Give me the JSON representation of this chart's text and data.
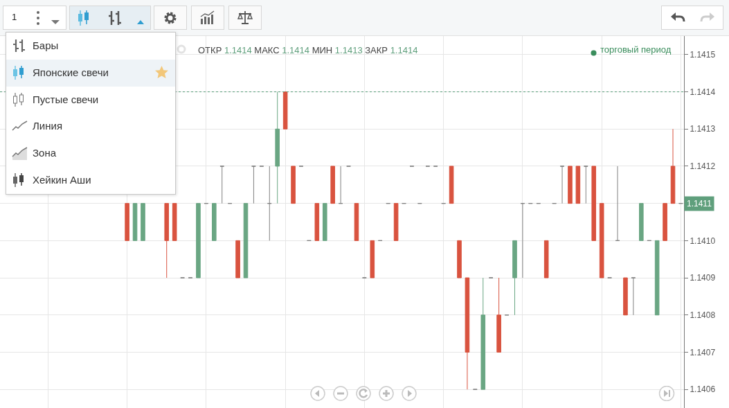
{
  "chart_data": {
    "type": "candlestick",
    "categories": [
      null,
      null,
      null,
      null,
      null,
      null,
      null,
      null,
      null,
      null,
      null,
      null,
      null,
      null,
      null,
      null,
      null,
      null,
      null,
      null,
      null,
      null,
      null,
      null,
      null,
      null,
      null,
      null,
      null,
      null,
      null,
      null,
      null,
      null,
      null,
      null,
      null,
      null,
      null,
      null,
      null,
      null,
      null,
      null,
      null,
      null,
      null,
      null,
      null,
      null,
      null,
      null,
      null,
      null,
      null,
      null,
      null,
      null,
      null,
      null,
      null,
      null,
      null,
      null,
      null,
      null,
      null,
      null,
      null,
      null,
      null,
      null,
      null,
      null,
      null,
      null,
      null,
      null,
      null,
      null,
      null,
      null,
      null,
      null,
      null,
      null
    ],
    "ohlc": [
      null,
      null,
      null,
      null,
      null,
      null,
      null,
      null,
      null,
      null,
      null,
      null,
      null,
      null,
      null,
      [
        1.1411,
        1.1411,
        1.141,
        1.141
      ],
      [
        1.141,
        1.1411,
        1.141,
        1.1411
      ],
      [
        1.141,
        1.1411,
        1.141,
        1.1411
      ],
      null,
      null,
      [
        1.1411,
        1.1411,
        1.1409,
        1.141
      ],
      [
        1.1411,
        1.1411,
        1.141,
        1.141
      ],
      [
        1.1409,
        1.1409,
        1.1409,
        1.1409
      ],
      [
        1.1409,
        1.1409,
        1.1409,
        1.1409
      ],
      [
        1.1409,
        1.1411,
        1.1409,
        1.1411
      ],
      [
        1.1411,
        1.1411,
        1.1411,
        1.1411
      ],
      [
        1.141,
        1.1411,
        1.141,
        1.1411
      ],
      [
        1.1412,
        1.1412,
        1.1411,
        1.1412
      ],
      [
        1.1411,
        1.1411,
        1.1411,
        1.1411
      ],
      [
        1.141,
        1.141,
        1.1409,
        1.1409
      ],
      [
        1.1409,
        1.1411,
        1.1409,
        1.1411
      ],
      [
        1.1412,
        1.1412,
        1.1411,
        1.1412
      ],
      [
        1.1412,
        1.1412,
        1.1412,
        1.1412
      ],
      [
        1.1411,
        1.1412,
        1.141,
        1.1411
      ],
      [
        1.1412,
        1.1414,
        1.1411,
        1.1413
      ],
      [
        1.1414,
        1.1414,
        1.1413,
        1.1413
      ],
      [
        1.1412,
        1.1412,
        1.1411,
        1.1411
      ],
      [
        1.1412,
        1.1412,
        1.1412,
        1.1412
      ],
      [
        1.141,
        1.141,
        1.141,
        1.141
      ],
      [
        1.1411,
        1.1411,
        1.141,
        1.141
      ],
      [
        1.141,
        1.1411,
        1.141,
        1.1411
      ],
      [
        1.1412,
        1.1412,
        1.1411,
        1.1411
      ],
      [
        1.1411,
        1.1412,
        1.1411,
        1.1411
      ],
      [
        1.1412,
        1.1412,
        1.1412,
        1.1412
      ],
      [
        1.1411,
        1.1411,
        1.141,
        1.141
      ],
      [
        1.1409,
        1.1409,
        1.1409,
        1.1409
      ],
      [
        1.141,
        1.141,
        1.1409,
        1.1409
      ],
      [
        1.141,
        1.141,
        1.141,
        1.141
      ],
      [
        1.1411,
        1.1411,
        1.1411,
        1.1411
      ],
      [
        1.1411,
        1.1411,
        1.141,
        1.141
      ],
      [
        1.1411,
        1.1411,
        1.1411,
        1.1411
      ],
      [
        1.1412,
        1.1412,
        1.1412,
        1.1412
      ],
      [
        1.1411,
        1.1411,
        1.1411,
        1.1411
      ],
      [
        1.1412,
        1.1412,
        1.1412,
        1.1412
      ],
      [
        1.1412,
        1.1412,
        1.1412,
        1.1412
      ],
      [
        1.1411,
        1.1411,
        1.1411,
        1.1411
      ],
      [
        1.1412,
        1.1412,
        1.1411,
        1.1411
      ],
      [
        1.141,
        1.141,
        1.1409,
        1.1409
      ],
      [
        1.1409,
        1.1409,
        1.1406,
        1.1407
      ],
      [
        1.1406,
        1.1406,
        1.1406,
        1.1406
      ],
      [
        1.1406,
        1.1409,
        1.1406,
        1.1408
      ],
      [
        1.1409,
        1.1409,
        1.1409,
        1.1409
      ],
      [
        1.1408,
        1.1409,
        1.1407,
        1.1407
      ],
      [
        1.1408,
        1.1408,
        1.1408,
        1.1408
      ],
      [
        1.1409,
        1.141,
        1.1408,
        1.141
      ],
      [
        1.1411,
        1.1411,
        1.1409,
        1.1411
      ],
      [
        1.1411,
        1.1411,
        1.1411,
        1.1411
      ],
      [
        1.1411,
        1.1411,
        1.1411,
        1.1411
      ],
      [
        1.141,
        1.141,
        1.1409,
        1.1409
      ],
      [
        1.1411,
        1.1411,
        1.1411,
        1.1411
      ],
      [
        1.1412,
        1.1412,
        1.1411,
        1.1412
      ],
      [
        1.1412,
        1.1412,
        1.1411,
        1.1411
      ],
      [
        1.1412,
        1.1412,
        1.1411,
        1.1411
      ],
      [
        1.1412,
        1.1412,
        1.1411,
        1.1412
      ],
      [
        1.1412,
        1.1412,
        1.141,
        1.141
      ],
      [
        1.1411,
        1.1411,
        1.1409,
        1.1409
      ],
      [
        1.1409,
        1.1409,
        1.1409,
        1.1409
      ],
      [
        1.141,
        1.1412,
        1.141,
        1.141
      ],
      [
        1.1409,
        1.1409,
        1.1408,
        1.1408
      ],
      [
        1.1409,
        1.1409,
        1.1408,
        1.1409
      ],
      [
        1.141,
        1.1411,
        1.141,
        1.1411
      ],
      [
        1.141,
        1.141,
        1.141,
        1.141
      ],
      [
        1.1408,
        1.141,
        1.1408,
        1.141
      ],
      [
        1.1411,
        1.1411,
        1.141,
        1.141
      ],
      [
        1.1412,
        1.1413,
        1.1411,
        1.1411
      ],
      [
        1.1411,
        1.1411,
        1.1411,
        1.1411
      ]
    ],
    "colors": [
      null,
      null,
      null,
      null,
      null,
      null,
      null,
      null,
      null,
      null,
      null,
      null,
      null,
      null,
      null,
      "#d9533f",
      "#6aa683",
      "#6aa683",
      null,
      null,
      "#d9533f",
      "#d9533f",
      "#808080",
      "#808080",
      "#6aa683",
      "#808080",
      "#6aa683",
      "#808080",
      "#808080",
      "#d9533f",
      "#6aa683",
      "#808080",
      "#808080",
      "#808080",
      "#6aa683",
      "#d9533f",
      "#d9533f",
      "#808080",
      "#808080",
      "#d9533f",
      "#6aa683",
      "#d9533f",
      "#808080",
      "#808080",
      "#d9533f",
      "#808080",
      "#d9533f",
      "#808080",
      "#808080",
      "#d9533f",
      "#808080",
      "#808080",
      "#808080",
      "#808080",
      "#808080",
      "#808080",
      "#d9533f",
      "#d9533f",
      "#d9533f",
      "#808080",
      "#6aa683",
      "#808080",
      "#d9533f",
      "#808080",
      "#6aa683",
      "#808080",
      "#808080",
      "#808080",
      "#d9533f",
      "#808080",
      "#808080",
      "#d9533f",
      "#d9533f",
      "#808080",
      "#d9533f",
      "#d9533f",
      "#808080",
      "#808080",
      "#d9533f",
      "#808080",
      "#6aa683",
      "#808080",
      "#6aa683",
      "#d9533f",
      "#d9533f",
      "#808080"
    ],
    "ylim": [
      1.14055,
      1.14155
    ],
    "yticks": [
      1.1406,
      1.1407,
      1.1408,
      1.1409,
      {
        "value": 1.141,
        "label": "1.1410"
      },
      {
        "value": 1.1411,
        "label": null
      },
      1.1412,
      1.1413,
      1.1414,
      1.1415
    ],
    "tick_labels": "y",
    "grid": true,
    "ref_lines": [
      {
        "axis": "y",
        "value": 1.1414,
        "color": "#5a9e7a",
        "line_style": "dotted"
      }
    ],
    "annotations": [
      "1",
      "Бары",
      "Японские свечи",
      "Пустые свечи",
      "Линия",
      "Зона",
      "Хейкин Аши",
      "ОТКР 1.1414 МАКС 1.1414 МИН 1.1413 ЗАКР 1.1414",
      "торговый период",
      {
        "text": "1.1411",
        "y": 1.1411
      }
    ]
  }
}
